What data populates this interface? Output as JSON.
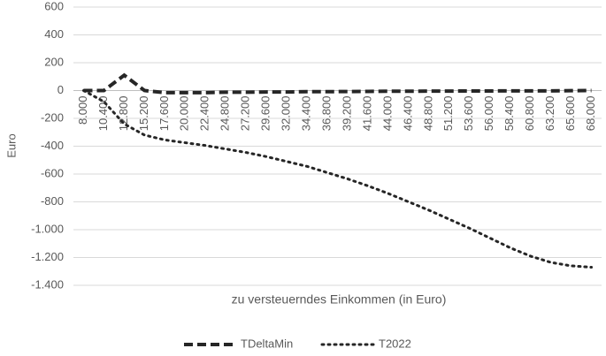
{
  "chart_data": {
    "type": "line",
    "x_label": "zu versteuerndes Einkommen (in Euro)",
    "y_label": "Euro",
    "categories": [
      "8.000",
      "10.400",
      "12.800",
      "15.200",
      "17.600",
      "20.000",
      "22.400",
      "24.800",
      "27.200",
      "29.600",
      "32.000",
      "34.400",
      "36.800",
      "39.200",
      "41.600",
      "44.000",
      "46.400",
      "48.800",
      "51.200",
      "53.600",
      "56.000",
      "58.400",
      "60.800",
      "63.200",
      "65.600",
      "68.000"
    ],
    "series": [
      {
        "name": "TDeltaMin",
        "color": "#262626",
        "dash": "dashed",
        "values": [
          0,
          0,
          110,
          0,
          -15,
          -15,
          -15,
          -12,
          -12,
          -10,
          -10,
          -8,
          -8,
          -7,
          -6,
          -5,
          -5,
          -4,
          -4,
          -3,
          -3,
          -2,
          -2,
          -2,
          -1,
          0
        ]
      },
      {
        "name": "T2022",
        "color": "#262626",
        "dash": "dotted",
        "values": [
          0,
          -80,
          -240,
          -320,
          -355,
          -375,
          -395,
          -420,
          -445,
          -475,
          -510,
          -545,
          -590,
          -635,
          -685,
          -740,
          -800,
          -860,
          -925,
          -990,
          -1060,
          -1130,
          -1190,
          -1235,
          -1260,
          -1270
        ]
      }
    ],
    "ylim": [
      -1400,
      600
    ],
    "yticks": [
      {
        "value": -1400,
        "label": "-1.400"
      },
      {
        "value": -1200,
        "label": "-1.200"
      },
      {
        "value": -1000,
        "label": "-1.000"
      },
      -800,
      -600,
      -400,
      -200,
      0,
      200,
      400,
      600
    ],
    "grid": true,
    "legend": "bottom"
  }
}
